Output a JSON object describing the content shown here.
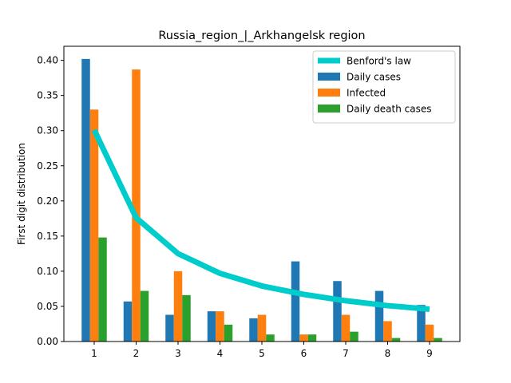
{
  "chart_data": {
    "type": "bar",
    "title": "Russia_region_|_Arkhangelsk region",
    "xlabel": "",
    "ylabel": "First digit distribution",
    "categories": [
      "1",
      "2",
      "3",
      "4",
      "5",
      "6",
      "7",
      "8",
      "9"
    ],
    "ylim": [
      0,
      0.42
    ],
    "yticks": [
      "0.00",
      "0.05",
      "0.10",
      "0.15",
      "0.20",
      "0.25",
      "0.30",
      "0.35",
      "0.40"
    ],
    "series": [
      {
        "name": "Daily cases",
        "color": "#1f77b4",
        "values": [
          0.402,
          0.057,
          0.038,
          0.043,
          0.033,
          0.114,
          0.086,
          0.072,
          0.052
        ]
      },
      {
        "name": "Infected",
        "color": "#ff7f0e",
        "values": [
          0.33,
          0.387,
          0.1,
          0.043,
          0.038,
          0.01,
          0.038,
          0.029,
          0.024
        ]
      },
      {
        "name": "Daily death cases",
        "color": "#2ca02c",
        "values": [
          0.148,
          0.072,
          0.066,
          0.024,
          0.01,
          0.01,
          0.014,
          0.005,
          0.005
        ]
      }
    ],
    "line": {
      "name": "Benford's law",
      "color": "#00cccc",
      "values": [
        0.301,
        0.176,
        0.125,
        0.097,
        0.079,
        0.067,
        0.058,
        0.051,
        0.046
      ]
    },
    "legend": "top-right",
    "grid": false
  }
}
